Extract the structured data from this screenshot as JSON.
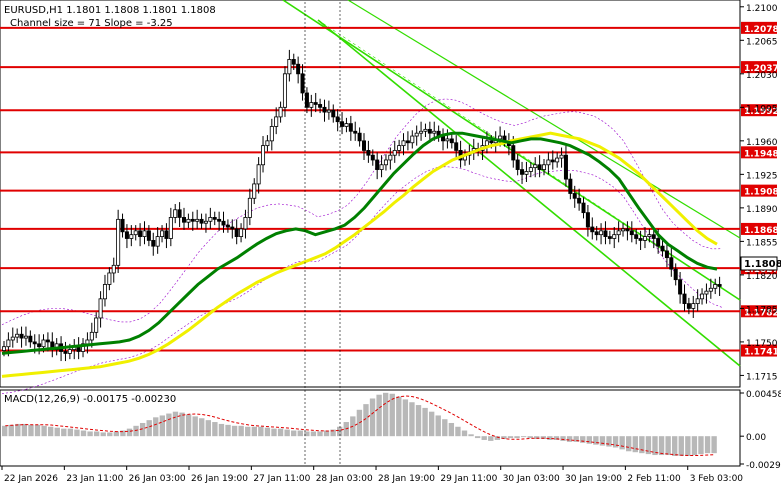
{
  "header": {
    "symbol_line": "EURUSD,H1  1.1801 1.1808 1.1801 1.1808",
    "channel_line": "Channel size = 71 Slope = -3.25"
  },
  "macd_label": "MACD(12,26,9) -0.00175 -0.00230",
  "colors": {
    "level_line": "#e00000",
    "level_label_bg": "#e00000",
    "ma_fast": "#008000",
    "ma_slow": "#f0f000",
    "channel": "#33dd00",
    "bull_candle": "#ffffff",
    "bear_candle": "#000000",
    "macd_hist": "#b8b8b8",
    "macd_signal": "#e00000",
    "bollinger": "#9900cc",
    "current_price_bg": "#ffffff"
  },
  "axis": {
    "price_ticks": [
      "1.2100",
      "1.2065",
      "1.2030",
      "1.1995",
      "1.1960",
      "1.1925",
      "1.1890",
      "1.1855",
      "1.1820",
      "1.1785",
      "1.1750",
      "1.1715"
    ],
    "macd_ticks": [
      "0.00458",
      "0.00",
      "-0.00295"
    ],
    "time_labels": [
      "22 Jan 2026",
      "23 Jan 11:00",
      "26 Jan 03:00",
      "26 Jan 19:00",
      "27 Jan 11:00",
      "28 Jan 03:00",
      "28 Jan 19:00",
      "29 Jan 11:00",
      "30 Jan 03:00",
      "30 Jan 19:00",
      "2 Feb 11:00",
      "3 Feb 03:00"
    ]
  },
  "current_price": "1.1808",
  "chart_data": {
    "type": "candlestick",
    "title": "EURUSD,H1",
    "ylim": [
      1.1705,
      1.2105
    ],
    "levels": [
      "1.2078",
      "1.2037",
      "1.1992",
      "1.1948",
      "1.1908",
      "1.1868",
      "1.1827",
      "1.1782",
      "1.1741"
    ],
    "close_series": [
      1.1745,
      1.1752,
      1.1755,
      1.1758,
      1.1754,
      1.1756,
      1.175,
      1.1748,
      1.1745,
      1.1752,
      1.175,
      1.1742,
      1.1748,
      1.174,
      1.1738,
      1.1742,
      1.1745,
      1.174,
      1.1748,
      1.1752,
      1.176,
      1.1775,
      1.1795,
      1.181,
      1.1822,
      1.183,
      1.1878,
      1.1865,
      1.1858,
      1.1862,
      1.1866,
      1.186,
      1.1866,
      1.1856,
      1.185,
      1.186,
      1.1866,
      1.1858,
      1.188,
      1.1888,
      1.188,
      1.1875,
      1.1878,
      1.1876,
      1.1878,
      1.1874,
      1.1876,
      1.188,
      1.1878,
      1.1876,
      1.1872,
      1.187,
      1.1868,
      1.186,
      1.1868,
      1.188,
      1.19,
      1.1915,
      1.1935,
      1.1955,
      1.196,
      1.1975,
      1.1985,
      1.1995,
      1.203,
      1.2045,
      1.204,
      1.203,
      1.201,
      1.1995,
      1.2,
      1.1998,
      1.1995,
      1.199,
      1.1992,
      1.1985,
      1.198,
      1.1975,
      1.1978,
      1.197,
      1.1968,
      1.196,
      1.195,
      1.1945,
      1.194,
      1.193,
      1.1935,
      1.194,
      1.1945,
      1.195,
      1.1955,
      1.196,
      1.1958,
      1.1965,
      1.1968,
      1.197,
      1.1972,
      1.1968,
      1.197,
      1.1965,
      1.196,
      1.1962,
      1.1958,
      1.195,
      1.194,
      1.1945,
      1.1948,
      1.1952,
      1.195,
      1.1955,
      1.196,
      1.1958,
      1.1962,
      1.1965,
      1.196,
      1.1955,
      1.194,
      1.193,
      1.1925,
      1.1928,
      1.1932,
      1.1935,
      1.193,
      1.1935,
      1.194,
      1.1938,
      1.1942,
      1.1945,
      1.192,
      1.1905,
      1.19,
      1.1895,
      1.1885,
      1.187,
      1.1865,
      1.1862,
      1.1866,
      1.186,
      1.1858,
      1.1862,
      1.1866,
      1.1868,
      1.1866,
      1.1862,
      1.1858,
      1.1856,
      1.186,
      1.1862,
      1.1858,
      1.185,
      1.1845,
      1.1838,
      1.1826,
      1.1815,
      1.18,
      1.179,
      1.1785,
      1.179,
      1.1795,
      1.18,
      1.1803,
      1.1806,
      1.181,
      1.1808
    ],
    "ma_fast": [
      1.1738,
      1.1739,
      1.174,
      1.1741,
      1.1742,
      1.1743,
      1.1744,
      1.1745,
      1.1746,
      1.1747,
      1.1748,
      1.1749,
      1.175,
      1.1752,
      1.1756,
      1.1762,
      1.177,
      1.178,
      1.179,
      1.18,
      1.181,
      1.1818,
      1.1826,
      1.1832,
      1.1838,
      1.1845,
      1.1852,
      1.1858,
      1.1863,
      1.1866,
      1.1868,
      1.1866,
      1.1862,
      1.1865,
      1.1868,
      1.1872,
      1.188,
      1.189,
      1.1902,
      1.1914,
      1.1926,
      1.1936,
      1.1946,
      1.1955,
      1.1962,
      1.1966,
      1.1968,
      1.1968,
      1.1966,
      1.1964,
      1.1962,
      1.196,
      1.1958,
      1.196,
      1.1962,
      1.1962,
      1.196,
      1.1958,
      1.1955,
      1.195,
      1.1945,
      1.1938,
      1.193,
      1.192,
      1.1905,
      1.189,
      1.1876,
      1.1862,
      1.1852,
      1.1845,
      1.1838,
      1.1832,
      1.1828,
      1.1826
    ],
    "ma_slow": [
      1.1714,
      1.1715,
      1.1716,
      1.1717,
      1.1718,
      1.1719,
      1.172,
      1.1721,
      1.1722,
      1.1723,
      1.1724,
      1.1726,
      1.1728,
      1.173,
      1.1733,
      1.1737,
      1.1742,
      1.1748,
      1.1755,
      1.1762,
      1.177,
      1.1778,
      1.1786,
      1.1793,
      1.18,
      1.1806,
      1.1812,
      1.1817,
      1.1822,
      1.1826,
      1.183,
      1.1834,
      1.1838,
      1.1842,
      1.1848,
      1.1855,
      1.1862,
      1.187,
      1.1878,
      1.1886,
      1.1895,
      1.1903,
      1.1912,
      1.192,
      1.1928,
      1.1934,
      1.194,
      1.1944,
      1.1948,
      1.1952,
      1.1955,
      1.1957,
      1.196,
      1.1962,
      1.1964,
      1.1966,
      1.1968,
      1.1966,
      1.1964,
      1.1962,
      1.1958,
      1.1954,
      1.1948,
      1.1942,
      1.1934,
      1.1926,
      1.1916,
      1.1906,
      1.1896,
      1.1886,
      1.1876,
      1.1866,
      1.1858,
      1.1852
    ],
    "macd_hist": [
      0.0011,
      0.0012,
      0.0013,
      0.0013,
      0.0012,
      0.0012,
      0.0011,
      0.001,
      0.0009,
      0.0008,
      0.0008,
      0.0007,
      0.0006,
      0.0005,
      0.0005,
      0.0004,
      0.0004,
      0.0005,
      0.0006,
      0.0008,
      0.0011,
      0.0014,
      0.0017,
      0.002,
      0.0022,
      0.0024,
      0.0026,
      0.0025,
      0.0023,
      0.0021,
      0.0019,
      0.0017,
      0.0015,
      0.0013,
      0.0012,
      0.0011,
      0.0011,
      0.001,
      0.001,
      0.001,
      0.0009,
      0.0008,
      0.0008,
      0.0007,
      0.0006,
      0.0006,
      0.0005,
      0.0005,
      0.0005,
      0.0006,
      0.0007,
      0.001,
      0.0015,
      0.0021,
      0.0028,
      0.0034,
      0.004,
      0.0044,
      0.0046,
      0.0045,
      0.0042,
      0.0039,
      0.0036,
      0.0033,
      0.003,
      0.0026,
      0.0022,
      0.0018,
      0.0014,
      0.001,
      0.0006,
      0.0002,
      -0.0002,
      -0.0004,
      -0.0005,
      -0.0004,
      -0.0003,
      -0.0002,
      -0.0002,
      -0.0001,
      -0.0002,
      -0.0003,
      -0.0003,
      -0.0004,
      -0.0004,
      -0.0005,
      -0.0006,
      -0.0006,
      -0.0007,
      -0.0008,
      -0.0009,
      -0.001,
      -0.0011,
      -0.0012,
      -0.0014,
      -0.0016,
      -0.0017,
      -0.0018,
      -0.0019,
      -0.002,
      -0.002,
      -0.002,
      -0.0021,
      -0.0021,
      -0.0021,
      -0.002,
      -0.0019,
      -0.0018,
      -0.0018
    ]
  }
}
